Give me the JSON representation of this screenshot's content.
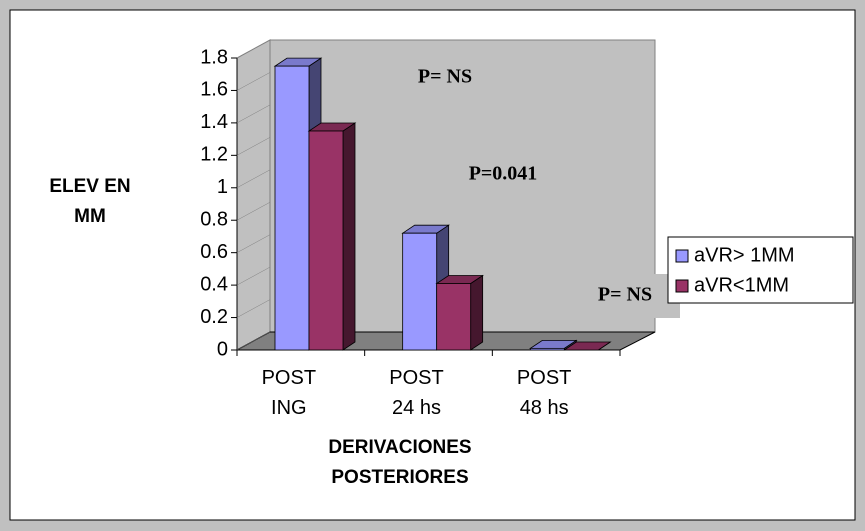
{
  "chart_data": {
    "type": "bar3d",
    "y_axis_label": "ELEV EN MM",
    "x_axis_label": "DERIVACIONES POSTERIORES",
    "categories": [
      "POST ING",
      "POST 24 hs",
      "POST 48 hs"
    ],
    "series": [
      {
        "name": "aVR> 1MM",
        "color": "#9999ff",
        "values": [
          1.75,
          0.72,
          0.01
        ]
      },
      {
        "name": "aVR<1MM",
        "color": "#993366",
        "values": [
          1.35,
          0.41,
          0
        ]
      }
    ],
    "ylim": [
      0,
      1.8
    ],
    "yticks": [
      0,
      0.2,
      0.4,
      0.6,
      0.8,
      1,
      1.2,
      1.4,
      1.6,
      1.8
    ],
    "annotations": [
      "P= NS",
      "P=0.041",
      "P= NS"
    ],
    "legend": "right"
  }
}
